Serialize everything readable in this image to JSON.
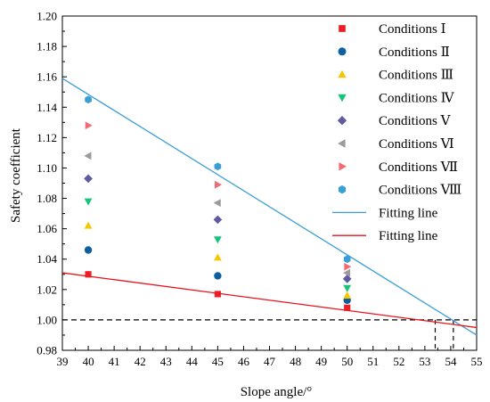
{
  "chart_data": {
    "type": "scatter",
    "xlabel": "Slope angle/°",
    "ylabel": "Safety coefficient",
    "xlim": [
      39,
      55
    ],
    "ylim": [
      0.98,
      1.2
    ],
    "x_ticks": [
      "39",
      "40",
      "41",
      "42",
      "43",
      "44",
      "45",
      "46",
      "47",
      "48",
      "49",
      "50",
      "51",
      "52",
      "53",
      "54",
      "55"
    ],
    "y_ticks": [
      "0.98",
      "1.00",
      "1.02",
      "1.04",
      "1.06",
      "1.08",
      "1.10",
      "1.12",
      "1.14",
      "1.16",
      "1.18",
      "1.20"
    ],
    "grid": false,
    "legend_position": "top-right",
    "series": [
      {
        "name": "Conditions Ⅰ",
        "marker": "square",
        "color": "#ee1c24",
        "x": [
          40,
          45,
          50
        ],
        "y": [
          1.03,
          1.017,
          1.008
        ]
      },
      {
        "name": "Conditions Ⅱ",
        "marker": "circle",
        "color": "#0d5fa0",
        "x": [
          40,
          45,
          50
        ],
        "y": [
          1.046,
          1.029,
          1.013
        ]
      },
      {
        "name": "Conditions Ⅲ",
        "marker": "triangle-up",
        "color": "#f7c600",
        "x": [
          40,
          45,
          50
        ],
        "y": [
          1.062,
          1.041,
          1.016
        ]
      },
      {
        "name": "Conditions Ⅳ",
        "marker": "triangle-down",
        "color": "#15c37a",
        "x": [
          40,
          45,
          50
        ],
        "y": [
          1.078,
          1.053,
          1.021
        ]
      },
      {
        "name": "Conditions Ⅴ",
        "marker": "diamond",
        "color": "#5f5aa2",
        "x": [
          40,
          45,
          50
        ],
        "y": [
          1.093,
          1.066,
          1.027
        ]
      },
      {
        "name": "Conditions Ⅵ",
        "marker": "triangle-left",
        "color": "#9b9b9b",
        "x": [
          40,
          45,
          50
        ],
        "y": [
          1.108,
          1.077,
          1.031
        ]
      },
      {
        "name": "Conditions Ⅶ",
        "marker": "triangle-right",
        "color": "#f26b72",
        "x": [
          40,
          45,
          50
        ],
        "y": [
          1.128,
          1.089,
          1.035
        ]
      },
      {
        "name": "Conditions Ⅷ",
        "marker": "hexagon",
        "color": "#3a9fd6",
        "x": [
          40,
          45,
          50
        ],
        "y": [
          1.145,
          1.101,
          1.04
        ]
      }
    ],
    "fit_lines": [
      {
        "name": "Fitting line",
        "color": "#3a9fd6",
        "x": [
          39,
          55
        ],
        "y": [
          1.159,
          0.99
        ]
      },
      {
        "name": "Fitting line",
        "color": "#e8131b",
        "x": [
          39,
          55
        ],
        "y": [
          1.031,
          0.995
        ]
      }
    ],
    "reference_lines": {
      "color": "#000000",
      "style": "dashed",
      "y_at": 1.0,
      "x_at": [
        53.4,
        54.1
      ]
    }
  }
}
